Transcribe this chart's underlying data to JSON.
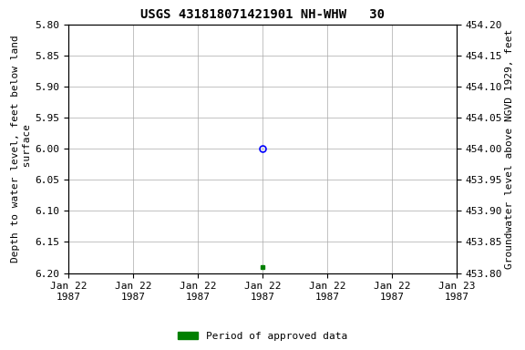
{
  "title": "USGS 431818071421901 NH-WHW   30",
  "ylabel_left": "Depth to water level, feet below land\n surface",
  "ylabel_right": "Groundwater level above NGVD 1929, feet",
  "ylim_left": [
    5.8,
    6.2
  ],
  "yticks_left": [
    5.8,
    5.85,
    5.9,
    5.95,
    6.0,
    6.05,
    6.1,
    6.15,
    6.2
  ],
  "yticks_right": [
    454.2,
    454.15,
    454.1,
    454.05,
    454.0,
    453.95,
    453.9,
    453.85,
    453.8
  ],
  "blue_circle_hour": 12,
  "blue_circle_depth": 6.0,
  "green_square_hour": 12,
  "green_square_depth": 6.19,
  "x_start_str": "1987-01-22 00:00:00",
  "x_end_str": "1987-01-23 00:00:00",
  "x_tick_hours": [
    0,
    4,
    8,
    12,
    16,
    20,
    24
  ],
  "background_color": "#ffffff",
  "grid_color": "#aaaaaa",
  "blue_color": "#0000ff",
  "green_color": "#008000",
  "legend_label": "Period of approved data",
  "title_fontsize": 10,
  "label_fontsize": 8,
  "tick_fontsize": 8
}
